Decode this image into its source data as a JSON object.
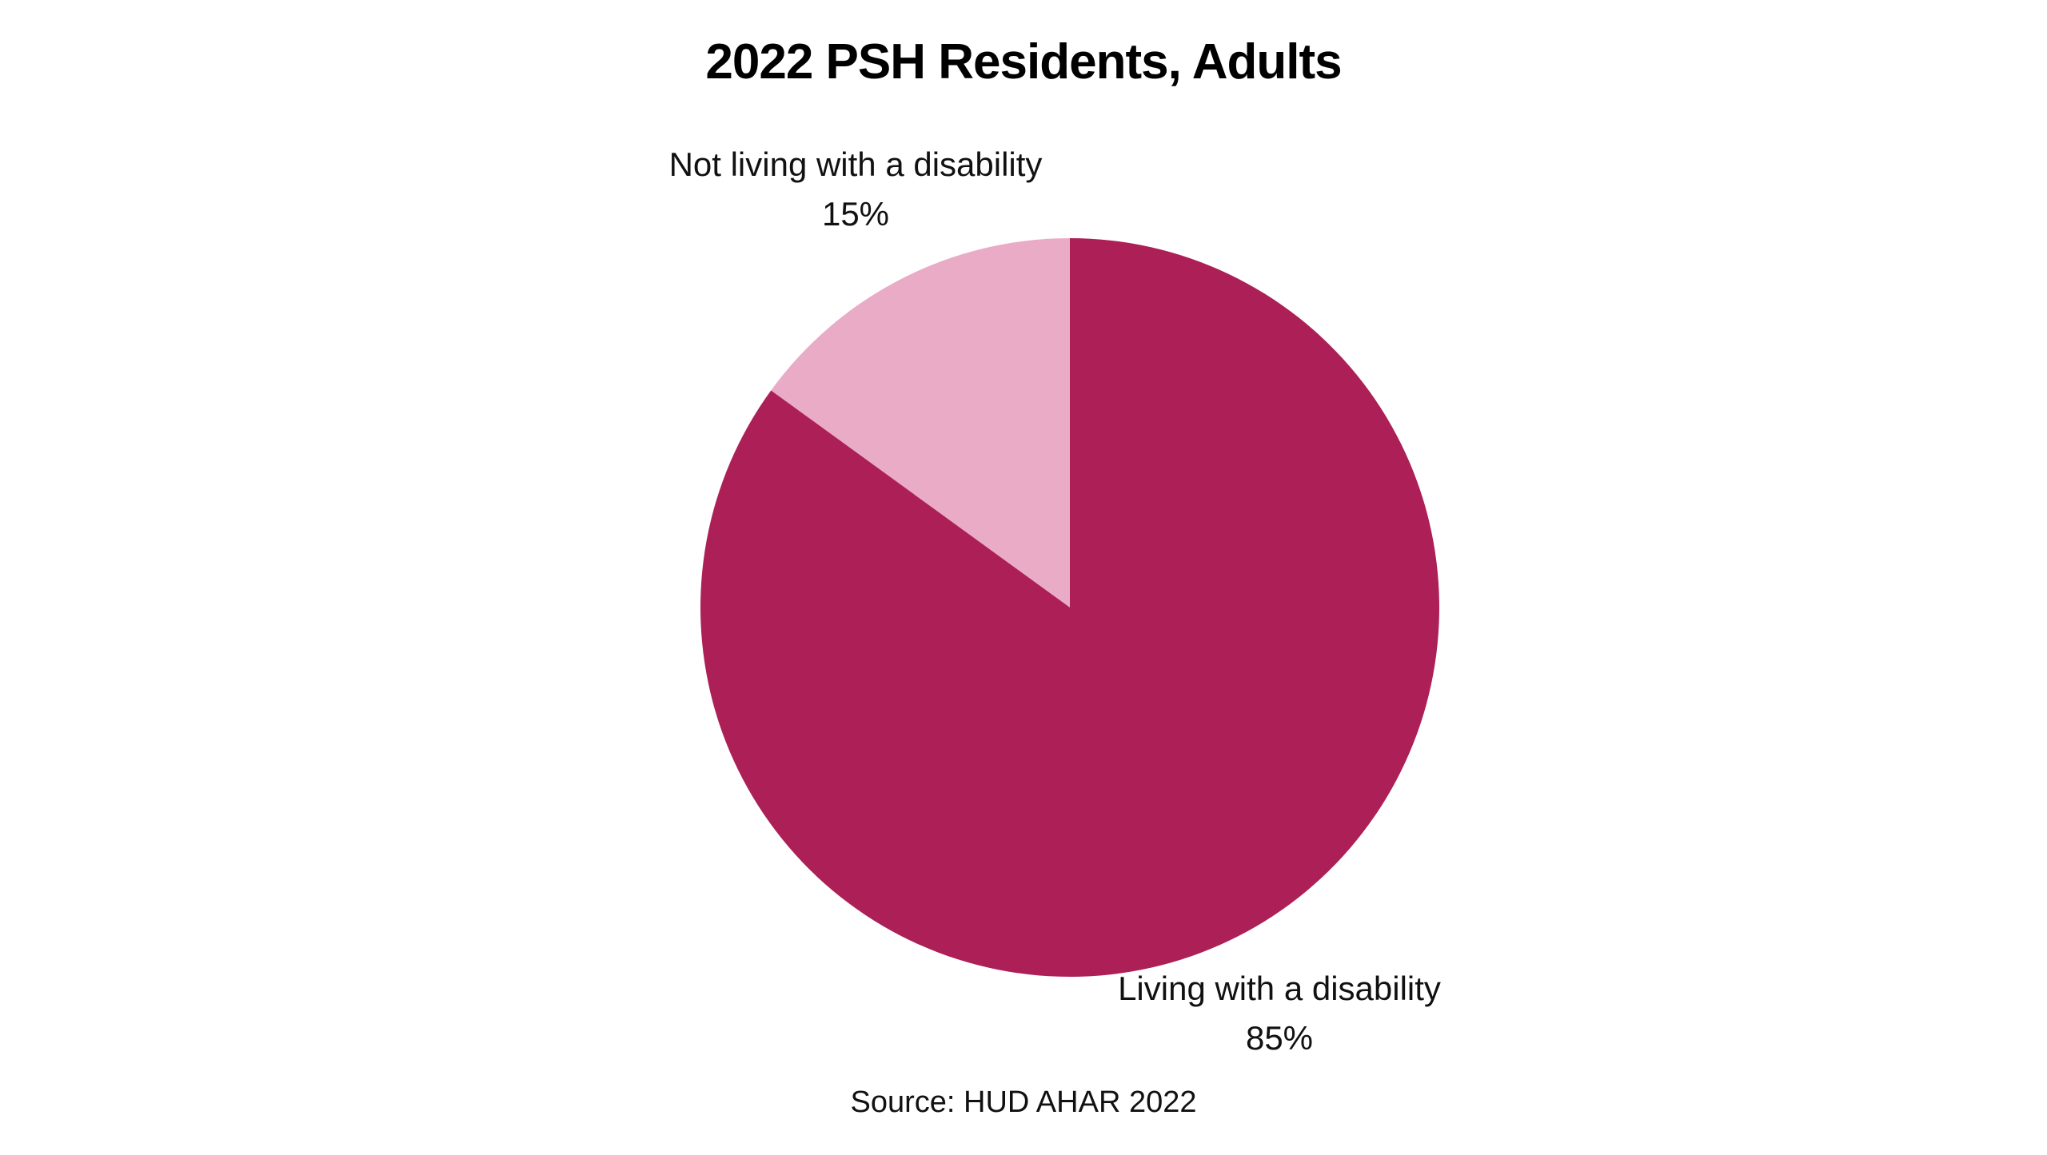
{
  "chart_data": {
    "type": "pie",
    "title": "2022 PSH Residents, Adults",
    "source": "Source: HUD AHAR 2022",
    "slices": [
      {
        "label": "Not living with a disability",
        "value": 15,
        "value_label": "15%",
        "color": "#e9abc6"
      },
      {
        "label": "Living with a disability",
        "value": 85,
        "value_label": "85%",
        "color": "#ac1f57"
      }
    ],
    "start_angle": "12 o'clock",
    "direction": "counterclockwise from top for first slice"
  }
}
